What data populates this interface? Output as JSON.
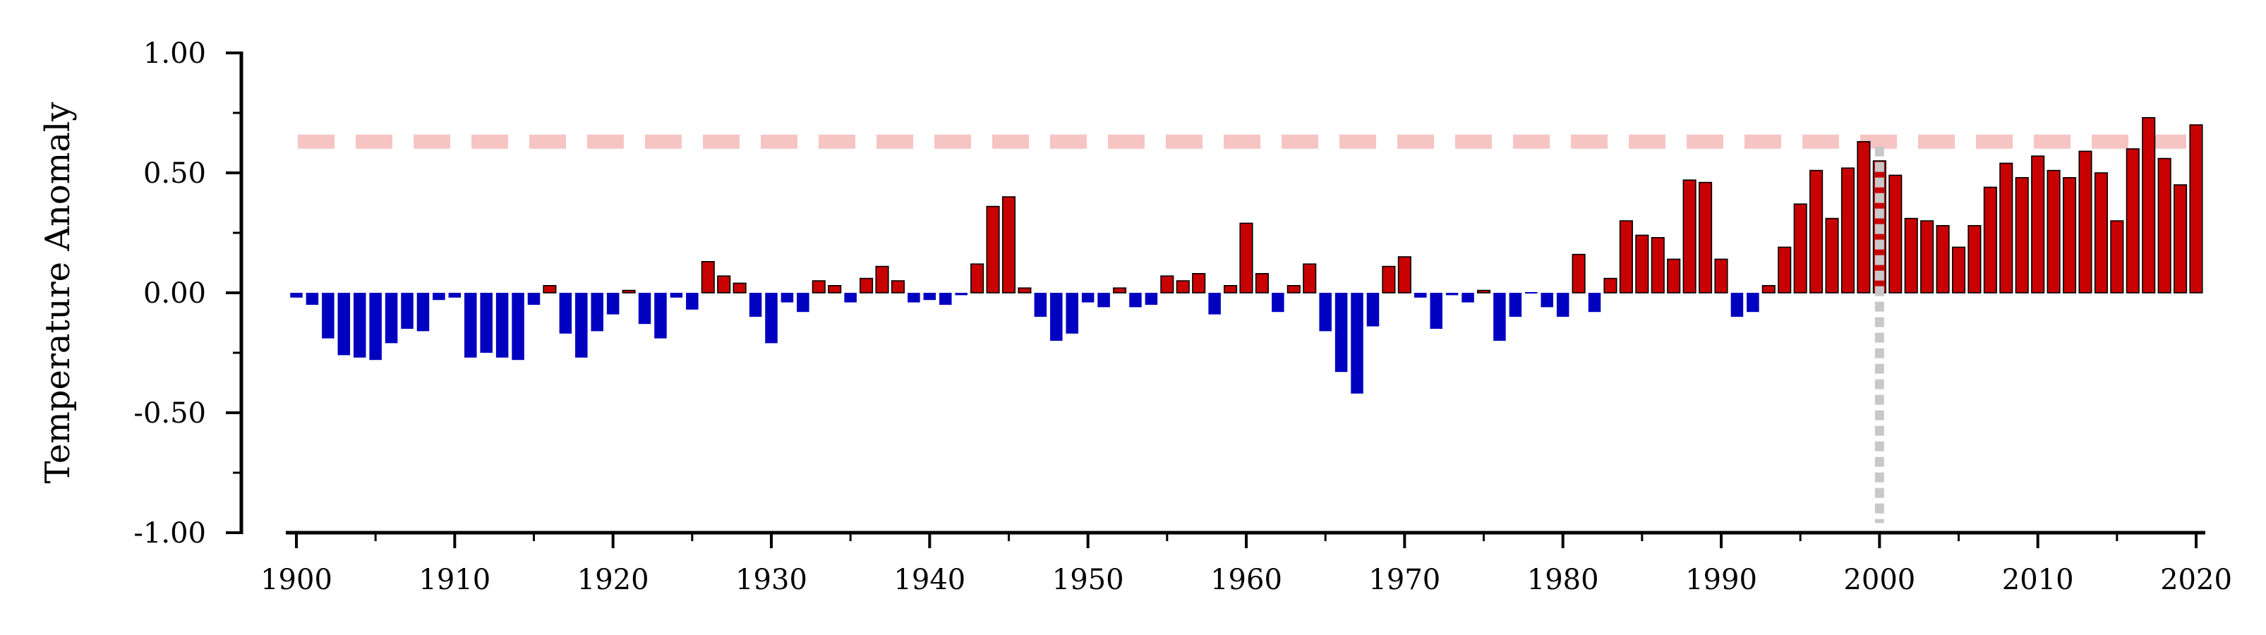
{
  "chart_data": {
    "type": "bar",
    "title": "",
    "xlabel": "",
    "ylabel": "Temperature Anomaly",
    "xlim": [
      1900,
      2020
    ],
    "ylim": [
      -1.0,
      1.0
    ],
    "x_ticks": [
      "1900",
      "1910",
      "1920",
      "1930",
      "1940",
      "1950",
      "1960",
      "1970",
      "1980",
      "1990",
      "2000",
      "2010",
      "2020"
    ],
    "y_ticks": [
      "1.00",
      "0.50",
      "0.00",
      "-0.50",
      "-1.00"
    ],
    "positive_color": "#c80000",
    "negative_color": "#0000c0",
    "grid": false,
    "reference_line": {
      "y": 0.63,
      "color": "#f7c4c4",
      "style": "dashed"
    },
    "marker_line": {
      "x": 2000,
      "color": "#c8c8c8",
      "style": "dotted"
    },
    "x": [
      1900,
      1901,
      1902,
      1903,
      1904,
      1905,
      1906,
      1907,
      1908,
      1909,
      1910,
      1911,
      1912,
      1913,
      1914,
      1915,
      1916,
      1917,
      1918,
      1919,
      1920,
      1921,
      1922,
      1923,
      1924,
      1925,
      1926,
      1927,
      1928,
      1929,
      1930,
      1931,
      1932,
      1933,
      1934,
      1935,
      1936,
      1937,
      1938,
      1939,
      1940,
      1941,
      1942,
      1943,
      1944,
      1945,
      1946,
      1947,
      1948,
      1949,
      1950,
      1951,
      1952,
      1953,
      1954,
      1955,
      1956,
      1957,
      1958,
      1959,
      1960,
      1961,
      1962,
      1963,
      1964,
      1965,
      1966,
      1967,
      1968,
      1969,
      1970,
      1971,
      1972,
      1973,
      1974,
      1975,
      1976,
      1977,
      1978,
      1979,
      1980,
      1981,
      1982,
      1983,
      1984,
      1985,
      1986,
      1987,
      1988,
      1989,
      1990,
      1991,
      1992,
      1993,
      1994,
      1995,
      1996,
      1997,
      1998,
      1999,
      2000,
      2001,
      2002,
      2003,
      2004,
      2005,
      2006,
      2007,
      2008,
      2009,
      2010,
      2011,
      2012,
      2013,
      2014,
      2015,
      2016,
      2017,
      2018,
      2019,
      2020
    ],
    "values": [
      -0.02,
      -0.05,
      -0.19,
      -0.26,
      -0.27,
      -0.28,
      -0.21,
      -0.15,
      -0.16,
      -0.03,
      -0.02,
      -0.27,
      -0.25,
      -0.27,
      -0.28,
      -0.05,
      0.03,
      -0.17,
      -0.27,
      -0.16,
      -0.09,
      0.01,
      -0.13,
      -0.19,
      -0.02,
      -0.07,
      0.13,
      0.07,
      0.04,
      -0.1,
      -0.21,
      -0.04,
      -0.08,
      0.05,
      0.03,
      -0.04,
      0.06,
      0.11,
      0.05,
      -0.04,
      -0.03,
      -0.05,
      -0.01,
      0.12,
      0.36,
      0.4,
      0.02,
      -0.1,
      -0.2,
      -0.17,
      -0.04,
      -0.06,
      0.02,
      -0.06,
      -0.05,
      0.07,
      0.05,
      0.08,
      -0.09,
      0.03,
      0.29,
      0.08,
      -0.08,
      0.03,
      0.12,
      -0.16,
      -0.33,
      -0.42,
      -0.14,
      0.11,
      0.15,
      -0.02,
      -0.15,
      -0.01,
      -0.04,
      0.01,
      -0.2,
      -0.1,
      0.0,
      -0.06,
      -0.1,
      0.16,
      -0.08,
      0.06,
      0.3,
      0.24,
      0.23,
      0.14,
      0.47,
      0.46,
      0.14,
      -0.1,
      -0.08,
      0.03,
      0.19,
      0.37,
      0.51,
      0.31,
      0.52,
      0.63,
      0.55,
      0.49,
      0.31,
      0.3,
      0.28,
      0.19,
      0.28,
      0.44,
      0.54,
      0.48,
      0.57,
      0.51,
      0.48,
      0.59,
      0.5,
      0.3,
      0.6,
      0.73,
      0.56,
      0.45,
      0.7
    ]
  }
}
